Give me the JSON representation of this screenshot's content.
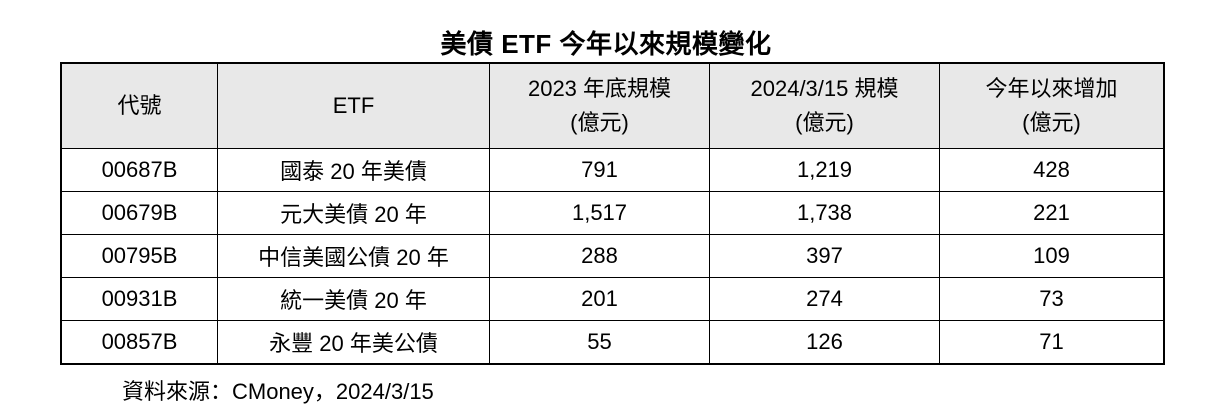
{
  "title": "美債 ETF 今年以來規模變化",
  "table": {
    "header_bg": "#e8e8e8",
    "border_color": "#000000",
    "columns": [
      {
        "label": "代號",
        "sublabel": ""
      },
      {
        "label": "ETF",
        "sublabel": ""
      },
      {
        "label": "2023 年底規模",
        "sublabel": "(億元)"
      },
      {
        "label": "2024/3/15 規模",
        "sublabel": "(億元)"
      },
      {
        "label": "今年以來增加",
        "sublabel": "(億元)"
      }
    ],
    "rows": [
      {
        "code": "00687B",
        "name": "國泰 20 年美債",
        "size_2023": "791",
        "size_2024": "1,219",
        "increase": "428"
      },
      {
        "code": "00679B",
        "name": "元大美債 20 年",
        "size_2023": "1,517",
        "size_2024": "1,738",
        "increase": "221"
      },
      {
        "code": "00795B",
        "name": "中信美國公債 20 年",
        "size_2023": "288",
        "size_2024": "397",
        "increase": "109"
      },
      {
        "code": "00931B",
        "name": "統一美債 20 年",
        "size_2023": "201",
        "size_2024": "274",
        "increase": "73"
      },
      {
        "code": "00857B",
        "name": "永豐 20 年美公債",
        "size_2023": "55",
        "size_2024": "126",
        "increase": "71"
      }
    ]
  },
  "footer": {
    "source": "資料來源：CMoney，2024/3/15"
  },
  "chart_data": {
    "type": "table",
    "title": "美債 ETF 今年以來規模變化",
    "columns": [
      "代號",
      "ETF",
      "2023 年底規模 (億元)",
      "2024/3/15 規模 (億元)",
      "今年以來增加 (億元)"
    ],
    "rows": [
      [
        "00687B",
        "國泰 20 年美債",
        791,
        1219,
        428
      ],
      [
        "00679B",
        "元大美債 20 年",
        1517,
        1738,
        221
      ],
      [
        "00795B",
        "中信美國公債 20 年",
        288,
        397,
        109
      ],
      [
        "00931B",
        "統一美債 20 年",
        201,
        274,
        73
      ],
      [
        "00857B",
        "永豐 20 年美公債",
        55,
        126,
        71
      ]
    ],
    "source": "資料來源：CMoney，2024/3/15"
  }
}
